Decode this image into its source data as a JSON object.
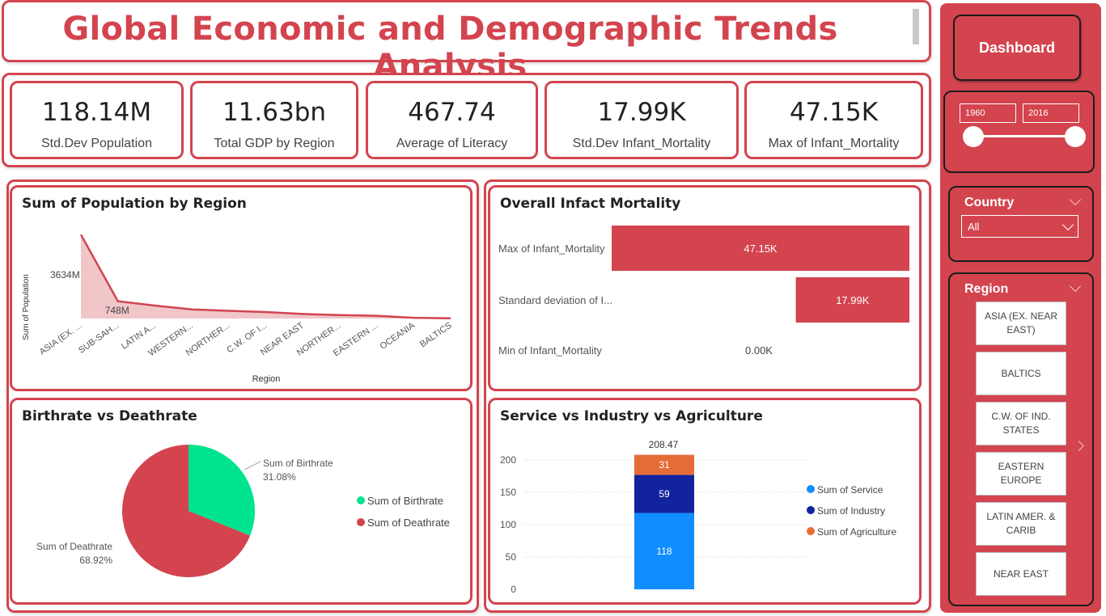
{
  "title": "Global Economic and Demographic Trends Analysis",
  "kpis": [
    {
      "value": "118.14M",
      "label": "Std.Dev Population"
    },
    {
      "value": "11.63bn",
      "label": "Total GDP by Region"
    },
    {
      "value": "467.74",
      "label": "Average of Literacy"
    },
    {
      "value": "17.99K",
      "label": "Std.Dev Infant_Mortality"
    },
    {
      "value": "47.15K",
      "label": "Max of Infant_Mortality"
    }
  ],
  "population_chart": {
    "title": "Sum of Population by Region",
    "ylabel": "Sum of Population",
    "xlabel": "Region",
    "label_first": "3634M",
    "label_second": "748M"
  },
  "mortality_chart": {
    "title": "Overall Infact Mortality",
    "rows": [
      {
        "label": "Max of Infant_Mortality",
        "display": "47.15K"
      },
      {
        "label": "Standard deviation of I...",
        "display": "17.99K"
      },
      {
        "label": "Min of Infant_Mortality",
        "display": "0.00K"
      }
    ]
  },
  "pie_chart": {
    "title": "Birthrate vs Deathrate",
    "birth_label": "Sum of Birthrate",
    "birth_pct": "31.08%",
    "death_label": "Sum of Deathrate",
    "death_pct": "68.92%",
    "legend": [
      "Sum of Birthrate",
      "Sum of Deathrate"
    ]
  },
  "stack_chart": {
    "title": "Service vs Industry vs Agriculture",
    "total_label": "208.47",
    "legend": [
      "Sum of Service",
      "Sum of Industry",
      "Sum of Agriculture"
    ]
  },
  "chart_data": [
    {
      "type": "area",
      "title": "Sum of Population by Region",
      "xlabel": "Region",
      "ylabel": "Sum of Population",
      "categories": [
        "ASIA (EX. ...",
        "SUB-SAH...",
        "LATIN A...",
        "WESTERN...",
        "NORTHER...",
        "C.W. OF I...",
        "NEAR EAST",
        "NORTHER...",
        "EASTERN ...",
        "OCEANIA",
        "BALTICS"
      ],
      "series": [
        {
          "values": [
            3634,
            748,
            561,
            396,
            334,
            280,
            196,
            146,
            120,
            32,
            7
          ]
        }
      ],
      "data_labels": [
        "3634M",
        "748M"
      ],
      "ylim": [
        0,
        4200
      ]
    },
    {
      "type": "bar",
      "orientation": "horizontal",
      "title": "Overall Infact Mortality",
      "categories": [
        "Max of Infant_Mortality",
        "Standard deviation of I...",
        "Min of Infant_Mortality"
      ],
      "values": [
        47.15,
        17.99,
        0.0
      ],
      "unit": "K",
      "data_labels": [
        "47.15K",
        "17.99K",
        "0.00K"
      ]
    },
    {
      "type": "pie",
      "title": "Birthrate vs Deathrate",
      "categories": [
        "Sum of Birthrate",
        "Sum of Deathrate"
      ],
      "values": [
        31.08,
        68.92
      ],
      "colors": [
        "#00e38f",
        "#d3444f"
      ],
      "legend_position": "right"
    },
    {
      "type": "bar",
      "stacked": true,
      "title": "Service vs Industry vs Agriculture",
      "categories": [
        ""
      ],
      "series": [
        {
          "name": "Sum of Service",
          "values": [
            118
          ],
          "color": "#118dff"
        },
        {
          "name": "Sum of Industry",
          "values": [
            59
          ],
          "color": "#12239e"
        },
        {
          "name": "Sum of Agriculture",
          "values": [
            31
          ],
          "color": "#e66c37"
        }
      ],
      "total": 208.47,
      "yticks": [
        0,
        50,
        100,
        150,
        200
      ],
      "ylim": [
        0,
        215
      ],
      "legend_position": "right"
    }
  ],
  "sidebar": {
    "dashboard_label": "Dashboard",
    "date_start": "1960",
    "date_end": "2016",
    "country_title": "Country",
    "country_value": "All",
    "region_title": "Region",
    "regions": [
      "ASIA (EX. NEAR EAST)",
      "BALTICS",
      "C.W. OF IND. STATES",
      "EASTERN EUROPE",
      "LATIN AMER. & CARIB",
      "NEAR EAST"
    ]
  },
  "colors": {
    "accent": "#d3444f",
    "birth": "#00e38f",
    "service": "#118dff",
    "industry": "#12239e",
    "agriculture": "#e66c37",
    "area_fill": "#ecb8bc"
  }
}
